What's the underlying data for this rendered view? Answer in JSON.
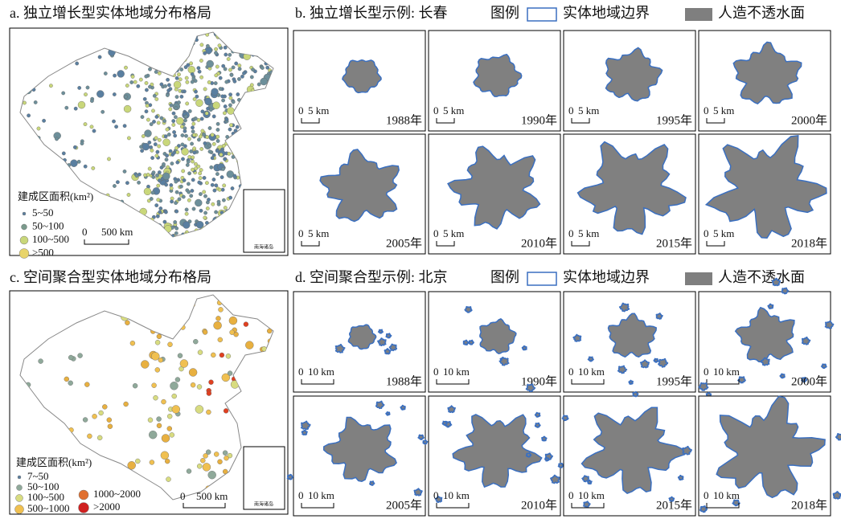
{
  "panel_a": {
    "title": "a. 独立增长型实体地域分布格局",
    "legend_title": "建成区面积(km²)",
    "legend": [
      "5~50",
      "50~100",
      "100~500",
      ">500"
    ],
    "scale": {
      "zero": "0",
      "label": "500 km"
    },
    "inset_label": "南海诸岛"
  },
  "panel_b": {
    "title": "b. 独立增长型示例: 长春",
    "legend_title": "图例",
    "legend": [
      "实体地域边界",
      "人造不透水面"
    ],
    "scale": {
      "zero": "0",
      "label": "5 km"
    },
    "years": [
      "1988年",
      "1990年",
      "1995年",
      "2000年",
      "2005年",
      "2010年",
      "2015年",
      "2018年"
    ]
  },
  "panel_c": {
    "title": "c. 空间聚合型实体地域分布格局",
    "legend_title": "建成区面积(km²)",
    "legend": [
      "7~50",
      "50~100",
      "100~500",
      "500~1000",
      "1000~2000",
      ">2000"
    ],
    "scale": {
      "zero": "0",
      "label": "500 km"
    },
    "inset_label": "南海诸岛"
  },
  "panel_d": {
    "title": "d. 空间聚合型示例: 北京",
    "legend_title": "图例",
    "legend": [
      "实体地域边界",
      "人造不透水面"
    ],
    "scale": {
      "zero": "0",
      "label": "10 km"
    },
    "years": [
      "1988年",
      "1990年",
      "1995年",
      "2000年",
      "2005年",
      "2010年",
      "2015年",
      "2018年"
    ]
  }
}
